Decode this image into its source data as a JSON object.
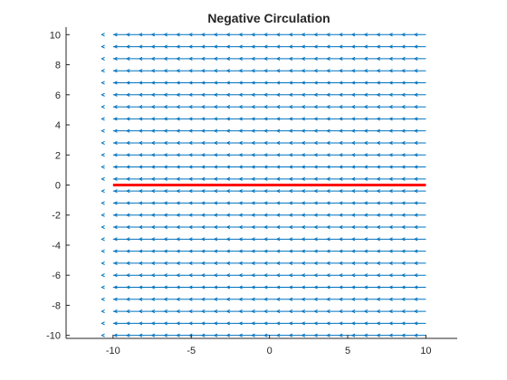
{
  "chart_data": {
    "type": "quiver",
    "title": "Negative Circulation",
    "xlabel": "",
    "ylabel": "",
    "xlim": [
      -13,
      12
    ],
    "ylim": [
      -10.2,
      10.5
    ],
    "xticks": [
      -10,
      -5,
      0,
      5,
      10
    ],
    "yticks": [
      -10,
      -8,
      -6,
      -4,
      -2,
      0,
      2,
      4,
      6,
      8,
      10
    ],
    "xtick_labels": [
      "-10",
      "-5",
      "0",
      "5",
      "10"
    ],
    "ytick_labels": [
      "-10",
      "-8",
      "-6",
      "-4",
      "-2",
      "0",
      "2",
      "4",
      "6",
      "8",
      "10"
    ],
    "grid": false,
    "field": {
      "x_range": [
        -10,
        10
      ],
      "y_range": [
        -10,
        10
      ],
      "step": 0.8,
      "u": -1,
      "v": 0,
      "color": "#0072bd"
    },
    "path": {
      "x": [
        -10,
        10
      ],
      "y": [
        0,
        0
      ],
      "color": "#ff0000"
    }
  }
}
